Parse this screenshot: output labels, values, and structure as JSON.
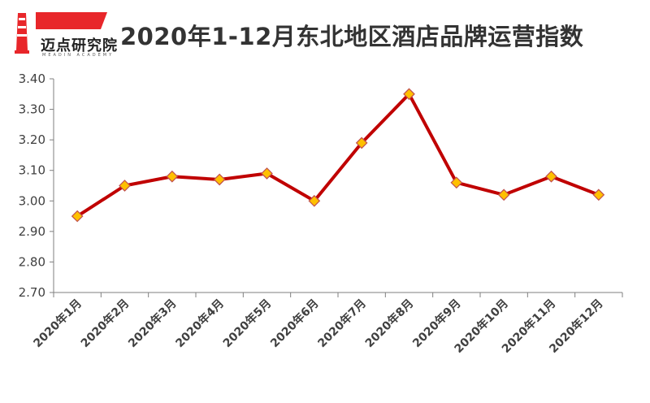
{
  "header": {
    "logo_text": "迈点研究院",
    "logo_sub": "MEADIN ACADEMY",
    "title": "2020年1-12月东北地区酒店品牌运营指数"
  },
  "colors": {
    "line": "#C00000",
    "marker_fill": "#FFC000",
    "marker_stroke": "#C0504D",
    "axis": "#7f7f7f",
    "logo_red": "#E8262A"
  },
  "icons": {
    "logo": "lighthouse-logo-icon"
  },
  "chart_data": {
    "type": "line",
    "title": "2020年1-12月东北地区酒店品牌运营指数",
    "categories": [
      "2020年1月",
      "2020年2月",
      "2020年3月",
      "2020年4月",
      "2020年5月",
      "2020年6月",
      "2020年7月",
      "2020年8月",
      "2020年9月",
      "2020年10月",
      "2020年11月",
      "2020年12月"
    ],
    "series": [
      {
        "values": [
          2.95,
          3.05,
          3.08,
          3.07,
          3.09,
          3.0,
          3.19,
          3.35,
          3.06,
          3.02,
          3.08,
          3.02
        ]
      }
    ],
    "ylim": [
      2.7,
      3.4
    ],
    "yticks": [
      "2.70",
      "2.80",
      "2.90",
      "3.00",
      "3.10",
      "3.20",
      "3.30",
      "3.40"
    ],
    "grid": false,
    "legend": "none"
  }
}
